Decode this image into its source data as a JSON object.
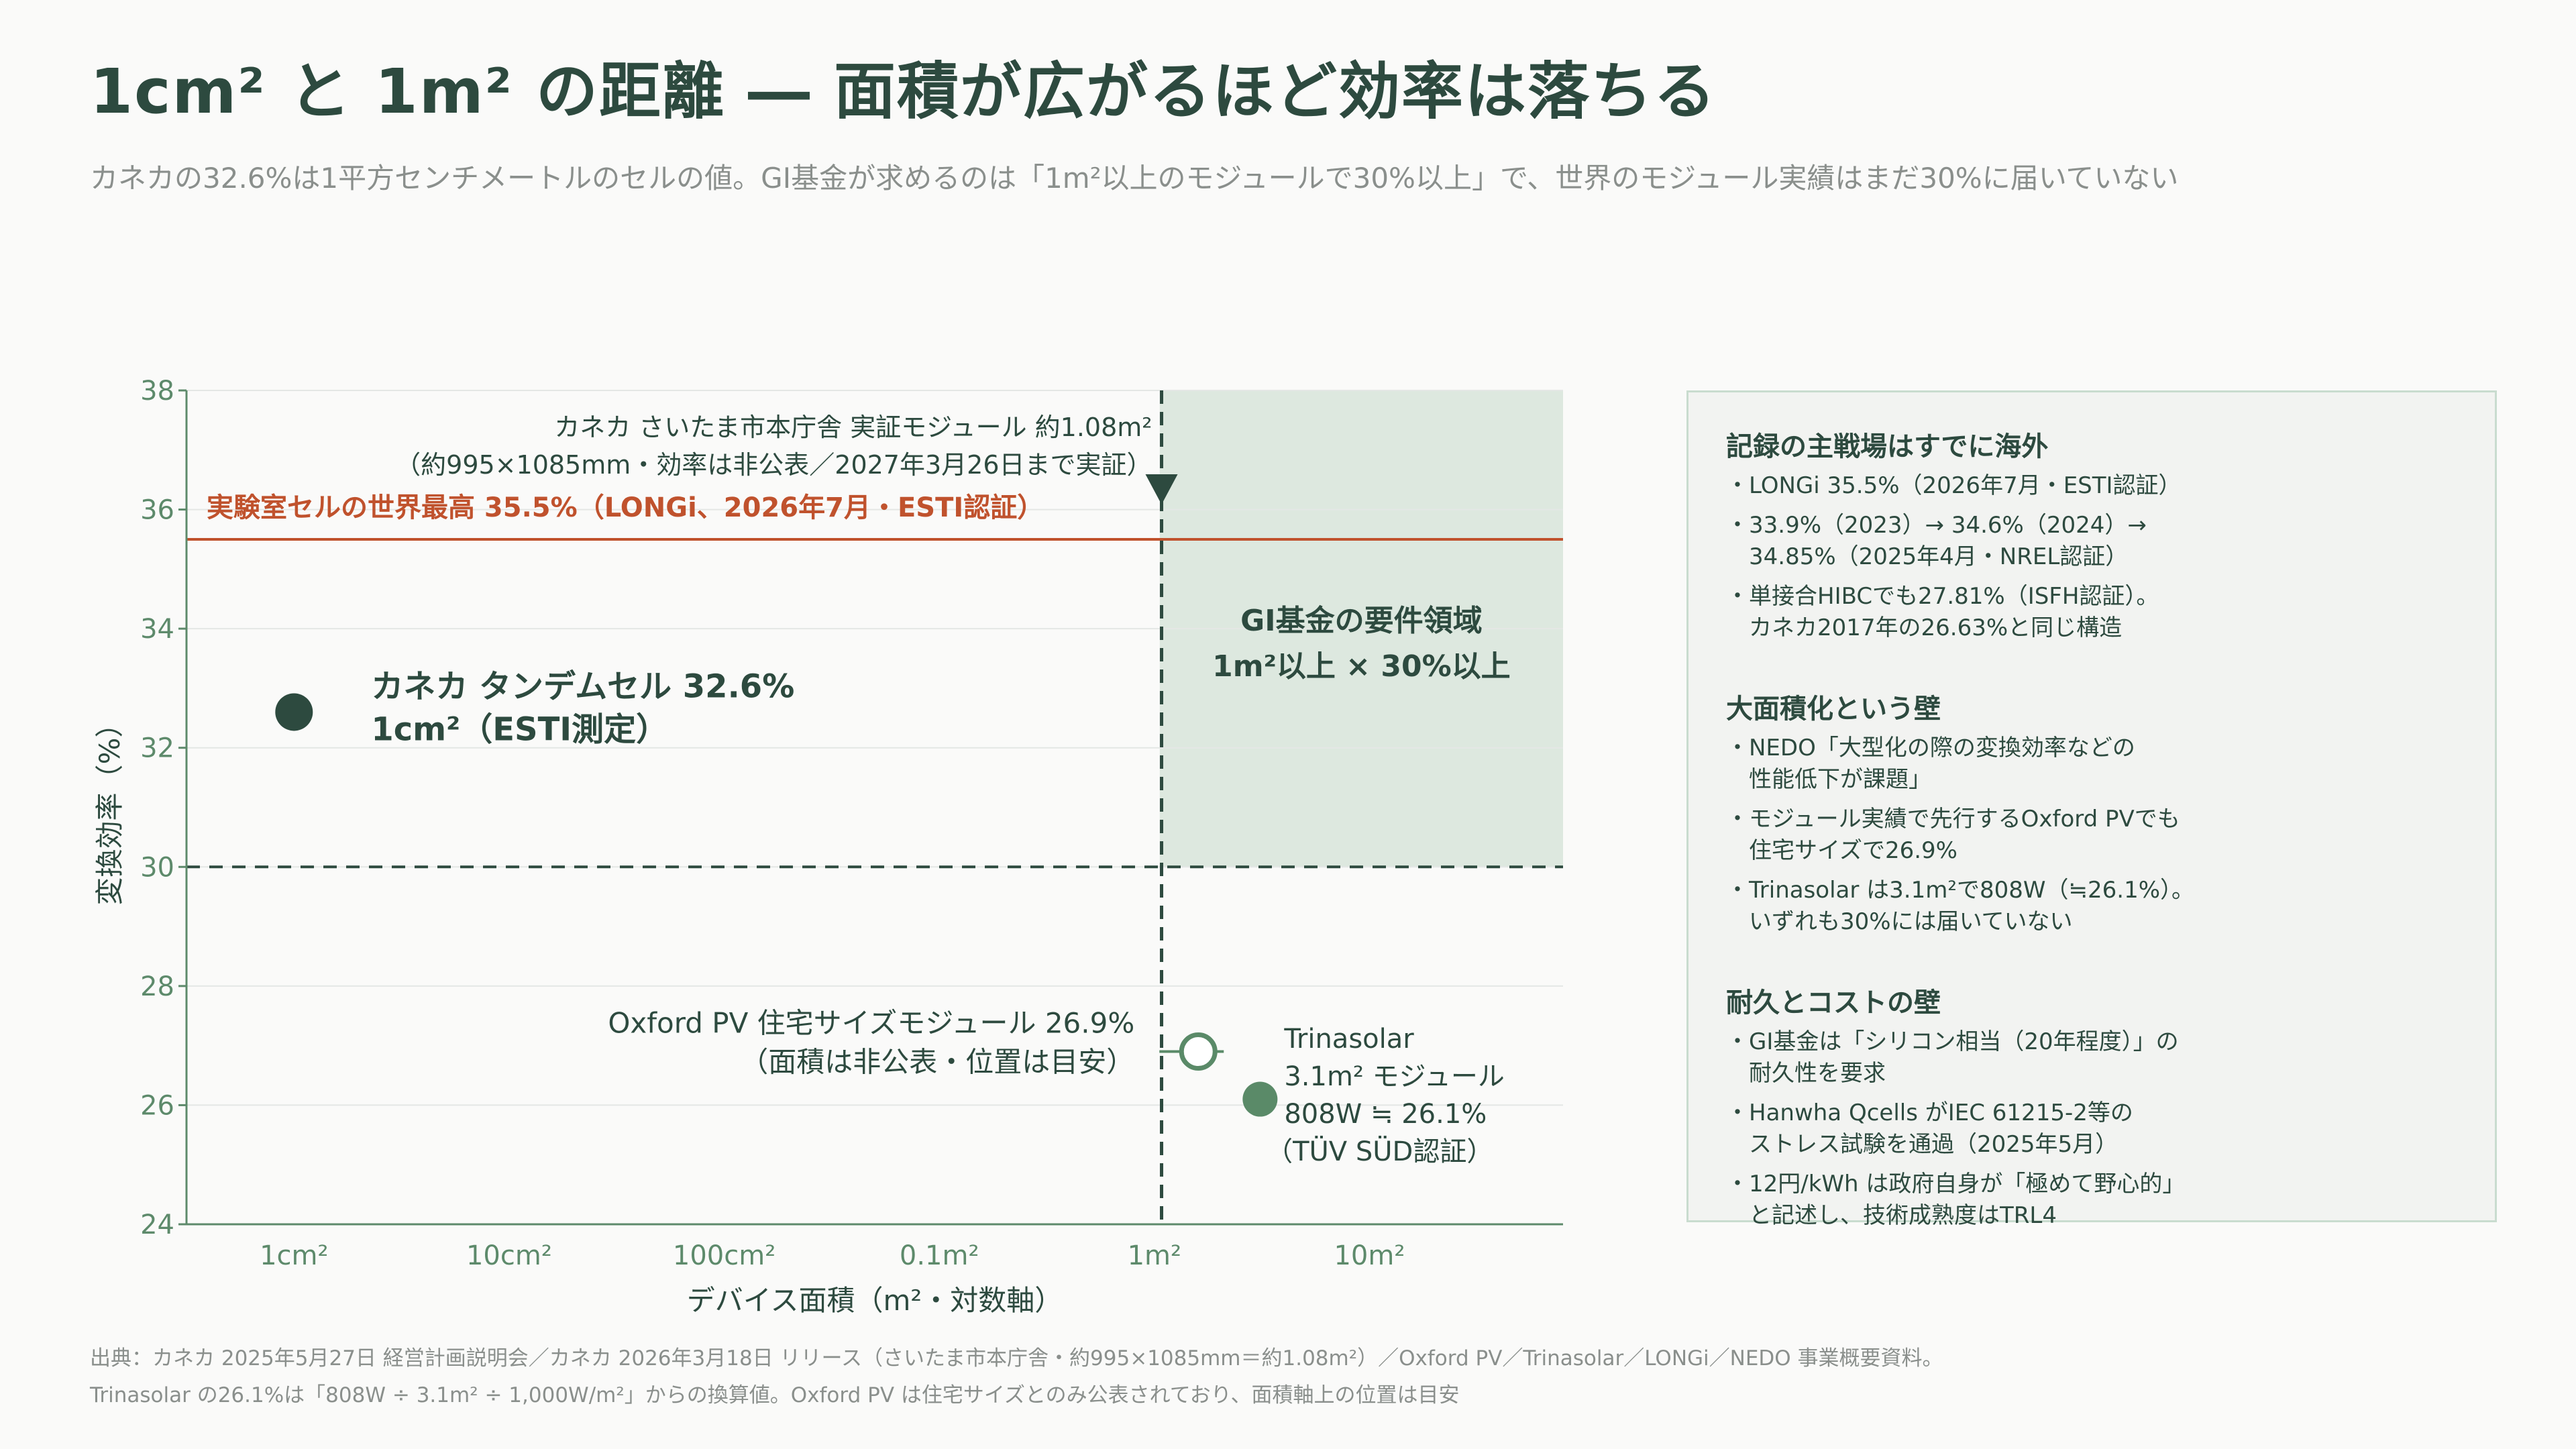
{
  "title": "1cm² と 1m² の距離 ― 面積が広がるほど効率は落ちる",
  "subtitle": "カネカの32.6%は1平方センチメートルのセルの値。GI基金が求めるのは「1m²以上のモジュールで30%以上」で、世界のモジュール実績はまだ30%に届いていない",
  "colors": {
    "primary": "#2d4a3f",
    "accent": "#c0522d",
    "region": "#dde8df",
    "muted": "#8a8f8c",
    "axis": "#5d8a6b",
    "marker_green": "#5a8a68"
  },
  "chart_data": {
    "type": "scatter",
    "xlabel": "デバイス面積（m²・対数軸）",
    "ylabel": "変換効率（%）",
    "x_scale": "log",
    "x_ticks": [
      {
        "value": 0.0001,
        "label": "1cm²"
      },
      {
        "value": 0.001,
        "label": "10cm²"
      },
      {
        "value": 0.01,
        "label": "100cm²"
      },
      {
        "value": 0.1,
        "label": "0.1m²"
      },
      {
        "value": 1,
        "label": "1m²"
      },
      {
        "value": 10,
        "label": "10m²"
      }
    ],
    "y_ticks": [
      24,
      26,
      28,
      30,
      32,
      34,
      36,
      38
    ],
    "ylim": [
      24,
      38
    ],
    "grid": true,
    "requirement_region": {
      "x_min": 1,
      "y_min": 30,
      "label_lines": [
        "GI基金の要件領域",
        "1m²以上 × 30%以上"
      ]
    },
    "reference_line": {
      "y": 35.5,
      "label": "実験室セルの世界最高 35.5%（LONGi、2026年7月・ESTI認証）"
    },
    "threshold_line": {
      "y": 30
    },
    "vertical_marker": {
      "x": 1.08,
      "label_lines": [
        "カネカ さいたま市本庁舎 実証モジュール 約1.08m²",
        "（約995×1085mm・効率は非公表／2027年3月26日まで実証）"
      ]
    },
    "points": [
      {
        "x": 0.0001,
        "y": 32.6,
        "style": "filled-dark",
        "label_lines": [
          "カネカ タンデムセル 32.6%",
          "1cm²（ESTI測定）"
        ]
      },
      {
        "x": 1.6,
        "y": 26.9,
        "style": "open",
        "label_lines": [
          "Oxford PV 住宅サイズモジュール 26.9%",
          "（面積は非公表・位置は目安）"
        ]
      },
      {
        "x": 3.1,
        "y": 26.1,
        "style": "filled-green",
        "label_lines": [
          "Trinasolar",
          "3.1m² モジュール",
          "808W ≒ 26.1%",
          "（TÜV SÜD認証）"
        ]
      }
    ]
  },
  "side_panel": {
    "sections": [
      {
        "heading": "記録の主戦場はすでに海外",
        "bullets": [
          "・LONGi 35.5%（2026年7月・ESTI認証）",
          "・33.9%（2023）→ 34.6%（2024）→\n　34.85%（2025年4月・NREL認証）",
          "・単接合HIBCでも27.81%（ISFH認証）。\n　カネカ2017年の26.63%と同じ構造"
        ]
      },
      {
        "heading": "大面積化という壁",
        "bullets": [
          "・NEDO「大型化の際の変換効率などの\n　性能低下が課題」",
          "・モジュール実績で先行するOxford PVでも\n　住宅サイズで26.9%",
          "・Trinasolar は3.1m²で808W（≒26.1%）。\n　いずれも30%には届いていない"
        ]
      },
      {
        "heading": "耐久とコストの壁",
        "bullets": [
          "・GI基金は「シリコン相当（20年程度）」の\n　耐久性を要求",
          "・Hanwha Qcells がIEC 61215-2等の\n　ストレス試験を通過（2025年5月）",
          "・12円/kWh は政府自身が「極めて野心的」\n　と記述し、技術成熟度はTRL4"
        ]
      }
    ]
  },
  "footer": {
    "line1": "出典：カネカ 2025年5月27日 経営計画説明会／カネカ 2026年3月18日 リリース（さいたま市本庁舎・約995×1085mm＝約1.08m²）／Oxford PV／Trinasolar／LONGi／NEDO 事業概要資料。",
    "line2": "Trinasolar の26.1%は「808W ÷ 3.1m² ÷ 1,000W/m²」からの換算値。Oxford PV は住宅サイズとのみ公表されており、面積軸上の位置は目安"
  }
}
